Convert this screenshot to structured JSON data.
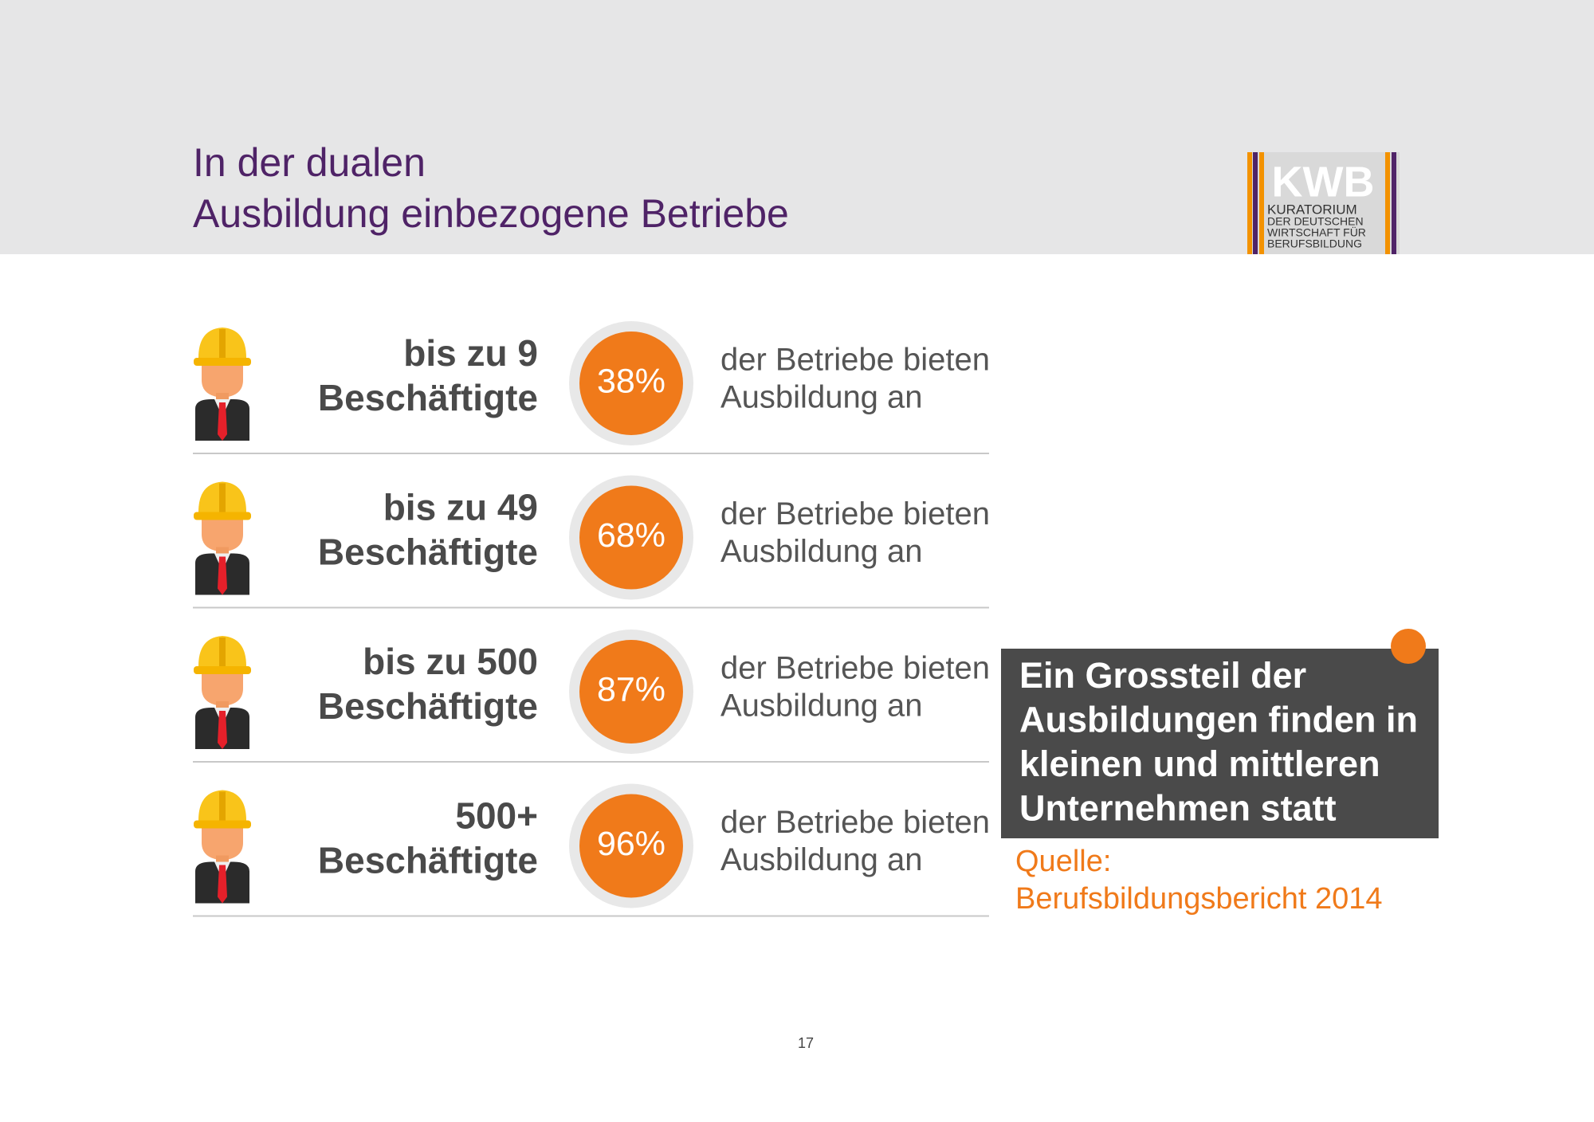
{
  "header": {
    "title": [
      "In der dualen",
      "Ausbildung einbezogene Betriebe"
    ],
    "logo": {
      "mark": "KWB",
      "lines": [
        "KURATORIUM",
        "DER DEUTSCHEN",
        "WIRTSCHAFT FÜR",
        "BERUFSBILDUNG"
      ]
    }
  },
  "rows": [
    {
      "label": [
        "bis zu 9",
        "Beschäftigte"
      ],
      "percent": "38%",
      "text": [
        "der Betriebe bieten",
        "Ausbildung an"
      ]
    },
    {
      "label": [
        "bis zu 49",
        "Beschäftigte"
      ],
      "percent": "68%",
      "text": [
        "der Betriebe bieten",
        "Ausbildung an"
      ]
    },
    {
      "label": [
        "bis zu 500",
        "Beschäftigte"
      ],
      "percent": "87%",
      "text": [
        "der Betriebe bieten",
        "Ausbildung an"
      ]
    },
    {
      "label": [
        "500+",
        "Beschäftigte"
      ],
      "percent": "96%",
      "text": [
        "der Betriebe bieten",
        "Ausbildung an"
      ]
    }
  ],
  "callout": {
    "lines": [
      "Ein Grossteil der",
      "Ausbildungen finden in",
      "kleinen und mittleren",
      "Unternehmen statt"
    ]
  },
  "source": {
    "lines": [
      "Quelle:",
      "Berufsbildungsbericht 2014"
    ]
  },
  "page_number": "17"
}
